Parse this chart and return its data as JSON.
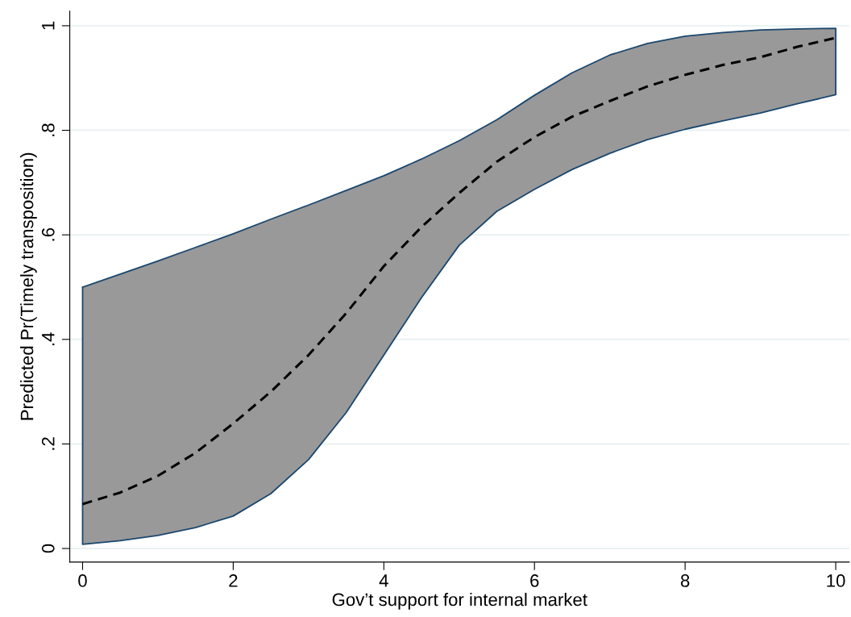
{
  "chart_data": {
    "type": "line",
    "xlabel": "Gov’t support for internal market",
    "ylabel": "Predicted Pr(Timely transposition)",
    "x": [
      0,
      0.5,
      1,
      1.5,
      2,
      2.5,
      3,
      3.5,
      4,
      4.5,
      5,
      5.5,
      6,
      6.5,
      7,
      7.5,
      8,
      8.5,
      9,
      9.5,
      10
    ],
    "series": [
      {
        "color": "#000000",
        "line_style": "dashed",
        "values": [
          0.085,
          0.107,
          0.139,
          0.183,
          0.239,
          0.3,
          0.37,
          0.45,
          0.54,
          0.615,
          0.68,
          0.74,
          0.787,
          0.826,
          0.856,
          0.884,
          0.906,
          0.925,
          0.94,
          0.96,
          0.977
        ],
        "lower": [
          0.008,
          0.015,
          0.025,
          0.04,
          0.062,
          0.105,
          0.17,
          0.26,
          0.37,
          0.48,
          0.58,
          0.645,
          0.687,
          0.725,
          0.756,
          0.782,
          0.802,
          0.818,
          0.833,
          0.851,
          0.868
        ],
        "upper": [
          0.5,
          0.525,
          0.55,
          0.576,
          0.602,
          0.63,
          0.657,
          0.685,
          0.713,
          0.745,
          0.78,
          0.82,
          0.867,
          0.91,
          0.944,
          0.966,
          0.98,
          0.987,
          0.992,
          0.994,
          0.995
        ]
      }
    ],
    "xlim": [
      -0.17,
      10.18
    ],
    "xticks": [
      0,
      2,
      4,
      6,
      8,
      10
    ],
    "ylim": [
      -0.026,
      1.028
    ],
    "yticks": [
      {
        "value": 0,
        "label": "0"
      },
      {
        "value": 0.2,
        "label": ".2"
      },
      {
        "value": 0.4,
        "label": ".4"
      },
      {
        "value": 0.6,
        "label": ".6"
      },
      {
        "value": 0.8,
        "label": ".8"
      },
      {
        "value": 1,
        "label": "1"
      }
    ],
    "grid": "y",
    "marker": "none",
    "legend": false
  }
}
